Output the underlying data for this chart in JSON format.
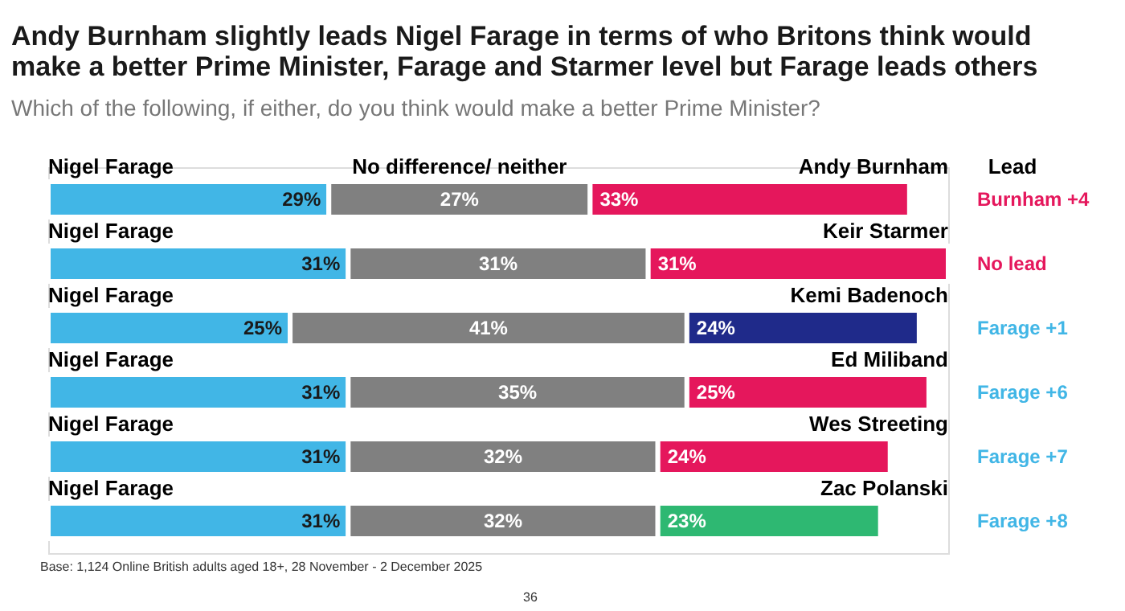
{
  "chart_data": {
    "type": "bar",
    "orientation": "horizontal",
    "stacked": true,
    "title": [
      "Andy Burnham slightly leads Nigel Farage in terms of who Britons think would",
      "make a better Prime Minister, Farage and Starmer level but Farage leads others"
    ],
    "subtitle": "Which of the following, if either, do you think would make a better Prime Minister?",
    "categories": [
      "Andy Burnham",
      "Keir Starmer",
      "Kemi Badenoch",
      "Ed Miliband",
      "Wes Streeting",
      "Zac Polanski"
    ],
    "series": [
      {
        "name": "Nigel Farage",
        "color": "#41b6e6",
        "values": [
          29,
          31,
          25,
          31,
          31,
          31
        ],
        "value_labels": [
          "29%",
          "31%",
          "25%",
          "31%",
          "31%",
          "31%"
        ]
      },
      {
        "name": "No difference/ neither",
        "color": "#808080",
        "values": [
          27,
          31,
          41,
          35,
          32,
          32
        ],
        "value_labels": [
          "27%",
          "31%",
          "41%",
          "35%",
          "32%",
          "32%"
        ]
      },
      {
        "colors": [
          "#e5175c",
          "#e5175c",
          "#1f2a8a",
          "#e5175c",
          "#e5175c",
          "#2eb872"
        ],
        "values": [
          33,
          31,
          24,
          25,
          24,
          23
        ],
        "value_labels": [
          "33%",
          "31%",
          "24%",
          "25%",
          "24%",
          "23%"
        ]
      }
    ],
    "annotations": [
      "Lead",
      "Base: 1,124 Online British adults aged 18+, 28 November - 2 December 2025",
      "36",
      "Burnham +4",
      "No lead",
      "Farage +1",
      "Farage +6",
      "Farage +7",
      "Farage +8"
    ]
  }
}
